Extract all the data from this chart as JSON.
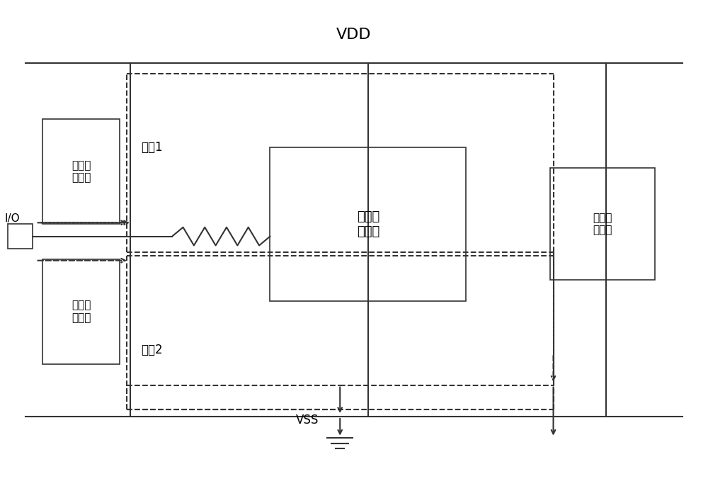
{
  "title": "VDD",
  "vss_label": "VSS",
  "bg_color": "#ffffff",
  "line_color": "#333333",
  "dashed_color": "#333333",
  "box_color": "#333333",
  "text_color": "#000000",
  "esd_box1_label": "静电防\n护单元",
  "esd_box2_label": "静电防\n护单元",
  "esd_box3_label": "静电防\n护单元",
  "core_label": "内部核\n心电路",
  "path1_label": "路径1",
  "path2_label": "路径2",
  "io_label": "I/O",
  "figsize": [
    10.0,
    6.86
  ],
  "dpi": 100
}
